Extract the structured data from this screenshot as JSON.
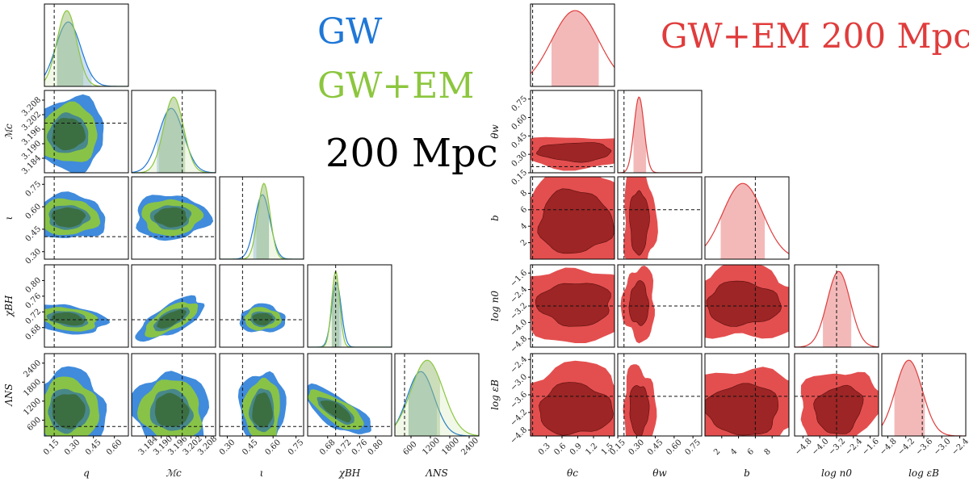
{
  "colors": {
    "gw": "#1f77d6",
    "gwem": "#8cc63e",
    "em": "#e03c3c",
    "dark_green": "#3a6b35",
    "dark_red": "#8b1a1a"
  },
  "chart_data": [
    {
      "type": "corner",
      "panel": "left",
      "legend": [
        {
          "name": "GW",
          "color": "#1f77d6"
        },
        {
          "name": "GW+EM",
          "color": "#8cc63e"
        }
      ],
      "annotation": "200 Mpc",
      "parameters": [
        {
          "key": "q",
          "label": "q",
          "range": [
            0.1,
            0.7
          ],
          "ticks": [
            "0.15",
            "0.30",
            "0.45",
            "0.60"
          ],
          "tick_values": [
            0.15,
            0.3,
            0.45,
            0.6
          ],
          "truth": 0.17
        },
        {
          "key": "Mc",
          "label": "ℳc",
          "range": [
            3.178,
            3.212
          ],
          "ticks": [
            "3.184",
            "3.190",
            "3.196",
            "3.202",
            "3.208"
          ],
          "tick_values": [
            3.184,
            3.19,
            3.196,
            3.202,
            3.208
          ],
          "truth": 3.1985
        },
        {
          "key": "iota",
          "label": "ι",
          "range": [
            0.25,
            0.8
          ],
          "ticks": [
            "0.30",
            "0.45",
            "0.60",
            "0.75"
          ],
          "tick_values": [
            0.3,
            0.45,
            0.6,
            0.75
          ],
          "truth": 0.4
        },
        {
          "key": "chiBH",
          "label": "χBH",
          "range": [
            0.63,
            0.84
          ],
          "ticks": [
            "0.68",
            "0.72",
            "0.76",
            "0.80"
          ],
          "tick_values": [
            0.68,
            0.72,
            0.76,
            0.8
          ],
          "truth": 0.7
        },
        {
          "key": "LambdaNS",
          "label": "ΛNS",
          "range": [
            100,
            2700
          ],
          "ticks": [
            "600",
            "1200",
            "1800",
            "2400"
          ],
          "tick_values": [
            600,
            1200,
            1800,
            2400
          ],
          "truth": 400
        }
      ],
      "marginals": {
        "GW": [
          {
            "mean": 0.27,
            "sd": 0.09,
            "peak_x": 0.27,
            "ci": [
              0.19,
              0.44
            ]
          },
          {
            "mean": 3.194,
            "sd": 0.005,
            "ci": [
              3.188,
              3.199
            ]
          },
          {
            "mean": 0.53,
            "sd": 0.05,
            "ci": [
              0.47,
              0.58
            ]
          },
          {
            "mean": 0.702,
            "sd": 0.012,
            "ci": [
              0.69,
              0.715
            ]
          },
          {
            "mean": 900,
            "sd": 420,
            "ci": [
              500,
              1400
            ]
          }
        ],
        "GW+EM": [
          {
            "mean": 0.26,
            "sd": 0.07,
            "ci": [
              0.19,
              0.38
            ]
          },
          {
            "mean": 3.195,
            "sd": 0.004,
            "ci": [
              3.189,
              3.2
            ]
          },
          {
            "mean": 0.54,
            "sd": 0.04,
            "ci": [
              0.49,
              0.58
            ]
          },
          {
            "mean": 0.7,
            "sd": 0.01,
            "ci": [
              0.69,
              0.71
            ]
          },
          {
            "mean": 1100,
            "sd": 500,
            "ci": [
              500,
              1500
            ]
          }
        ]
      }
    },
    {
      "type": "corner",
      "panel": "right",
      "legend": [
        {
          "name": "GW+EM 200 Mpc",
          "color": "#e03c3c"
        }
      ],
      "parameters": [
        {
          "key": "theta_c",
          "label": "θc",
          "range": [
            0.0,
            1.6
          ],
          "ticks": [
            "0.3",
            "0.6",
            "0.9",
            "1.2",
            "1.5"
          ],
          "tick_values": [
            0.3,
            0.6,
            0.9,
            1.2,
            1.5
          ],
          "truth": 0.04
        },
        {
          "key": "theta_w",
          "label": "θw",
          "range": [
            0.15,
            0.82
          ],
          "ticks": [
            "0.15",
            "0.30",
            "0.45",
            "0.60",
            "0.75"
          ],
          "tick_values": [
            0.15,
            0.3,
            0.45,
            0.6,
            0.75
          ],
          "truth": 0.2
        },
        {
          "key": "b",
          "label": "b",
          "range": [
            0.0,
            10.0
          ],
          "ticks": [
            "2",
            "4",
            "6",
            "8"
          ],
          "tick_values": [
            2,
            4,
            6,
            8
          ],
          "truth": 6.0
        },
        {
          "key": "log_n0",
          "label": "log n0",
          "range": [
            -5.2,
            -1.2
          ],
          "ticks": [
            "−4.8",
            "−4.0",
            "−3.2",
            "−2.4",
            "−1.6"
          ],
          "tick_values": [
            -4.8,
            -4.0,
            -3.2,
            -2.4,
            -1.6
          ],
          "truth": -3.2
        },
        {
          "key": "log_eB",
          "label": "log εB",
          "range": [
            -5.0,
            -2.2
          ],
          "ticks": [
            "−4.8",
            "−4.2",
            "−3.6",
            "−3.0",
            "−2.4"
          ],
          "tick_values": [
            -4.8,
            -4.2,
            -3.6,
            -3.0,
            -2.4
          ],
          "truth": -3.65
        }
      ],
      "marginals": {
        "GW+EM": [
          {
            "mean": 0.85,
            "sd": 0.45,
            "ci": [
              0.4,
              1.3
            ]
          },
          {
            "mean": 0.32,
            "sd": 0.04,
            "ci": [
              0.27,
              0.38
            ]
          },
          {
            "mean": 4.5,
            "sd": 2.4,
            "ci": [
              1.8,
              7.2
            ]
          },
          {
            "mean": -3.1,
            "sd": 0.55,
            "ci": [
              -3.9,
              -2.5
            ]
          },
          {
            "mean": -4.1,
            "sd": 0.45,
            "ci": [
              -4.6,
              -3.55
            ]
          }
        ]
      }
    }
  ]
}
